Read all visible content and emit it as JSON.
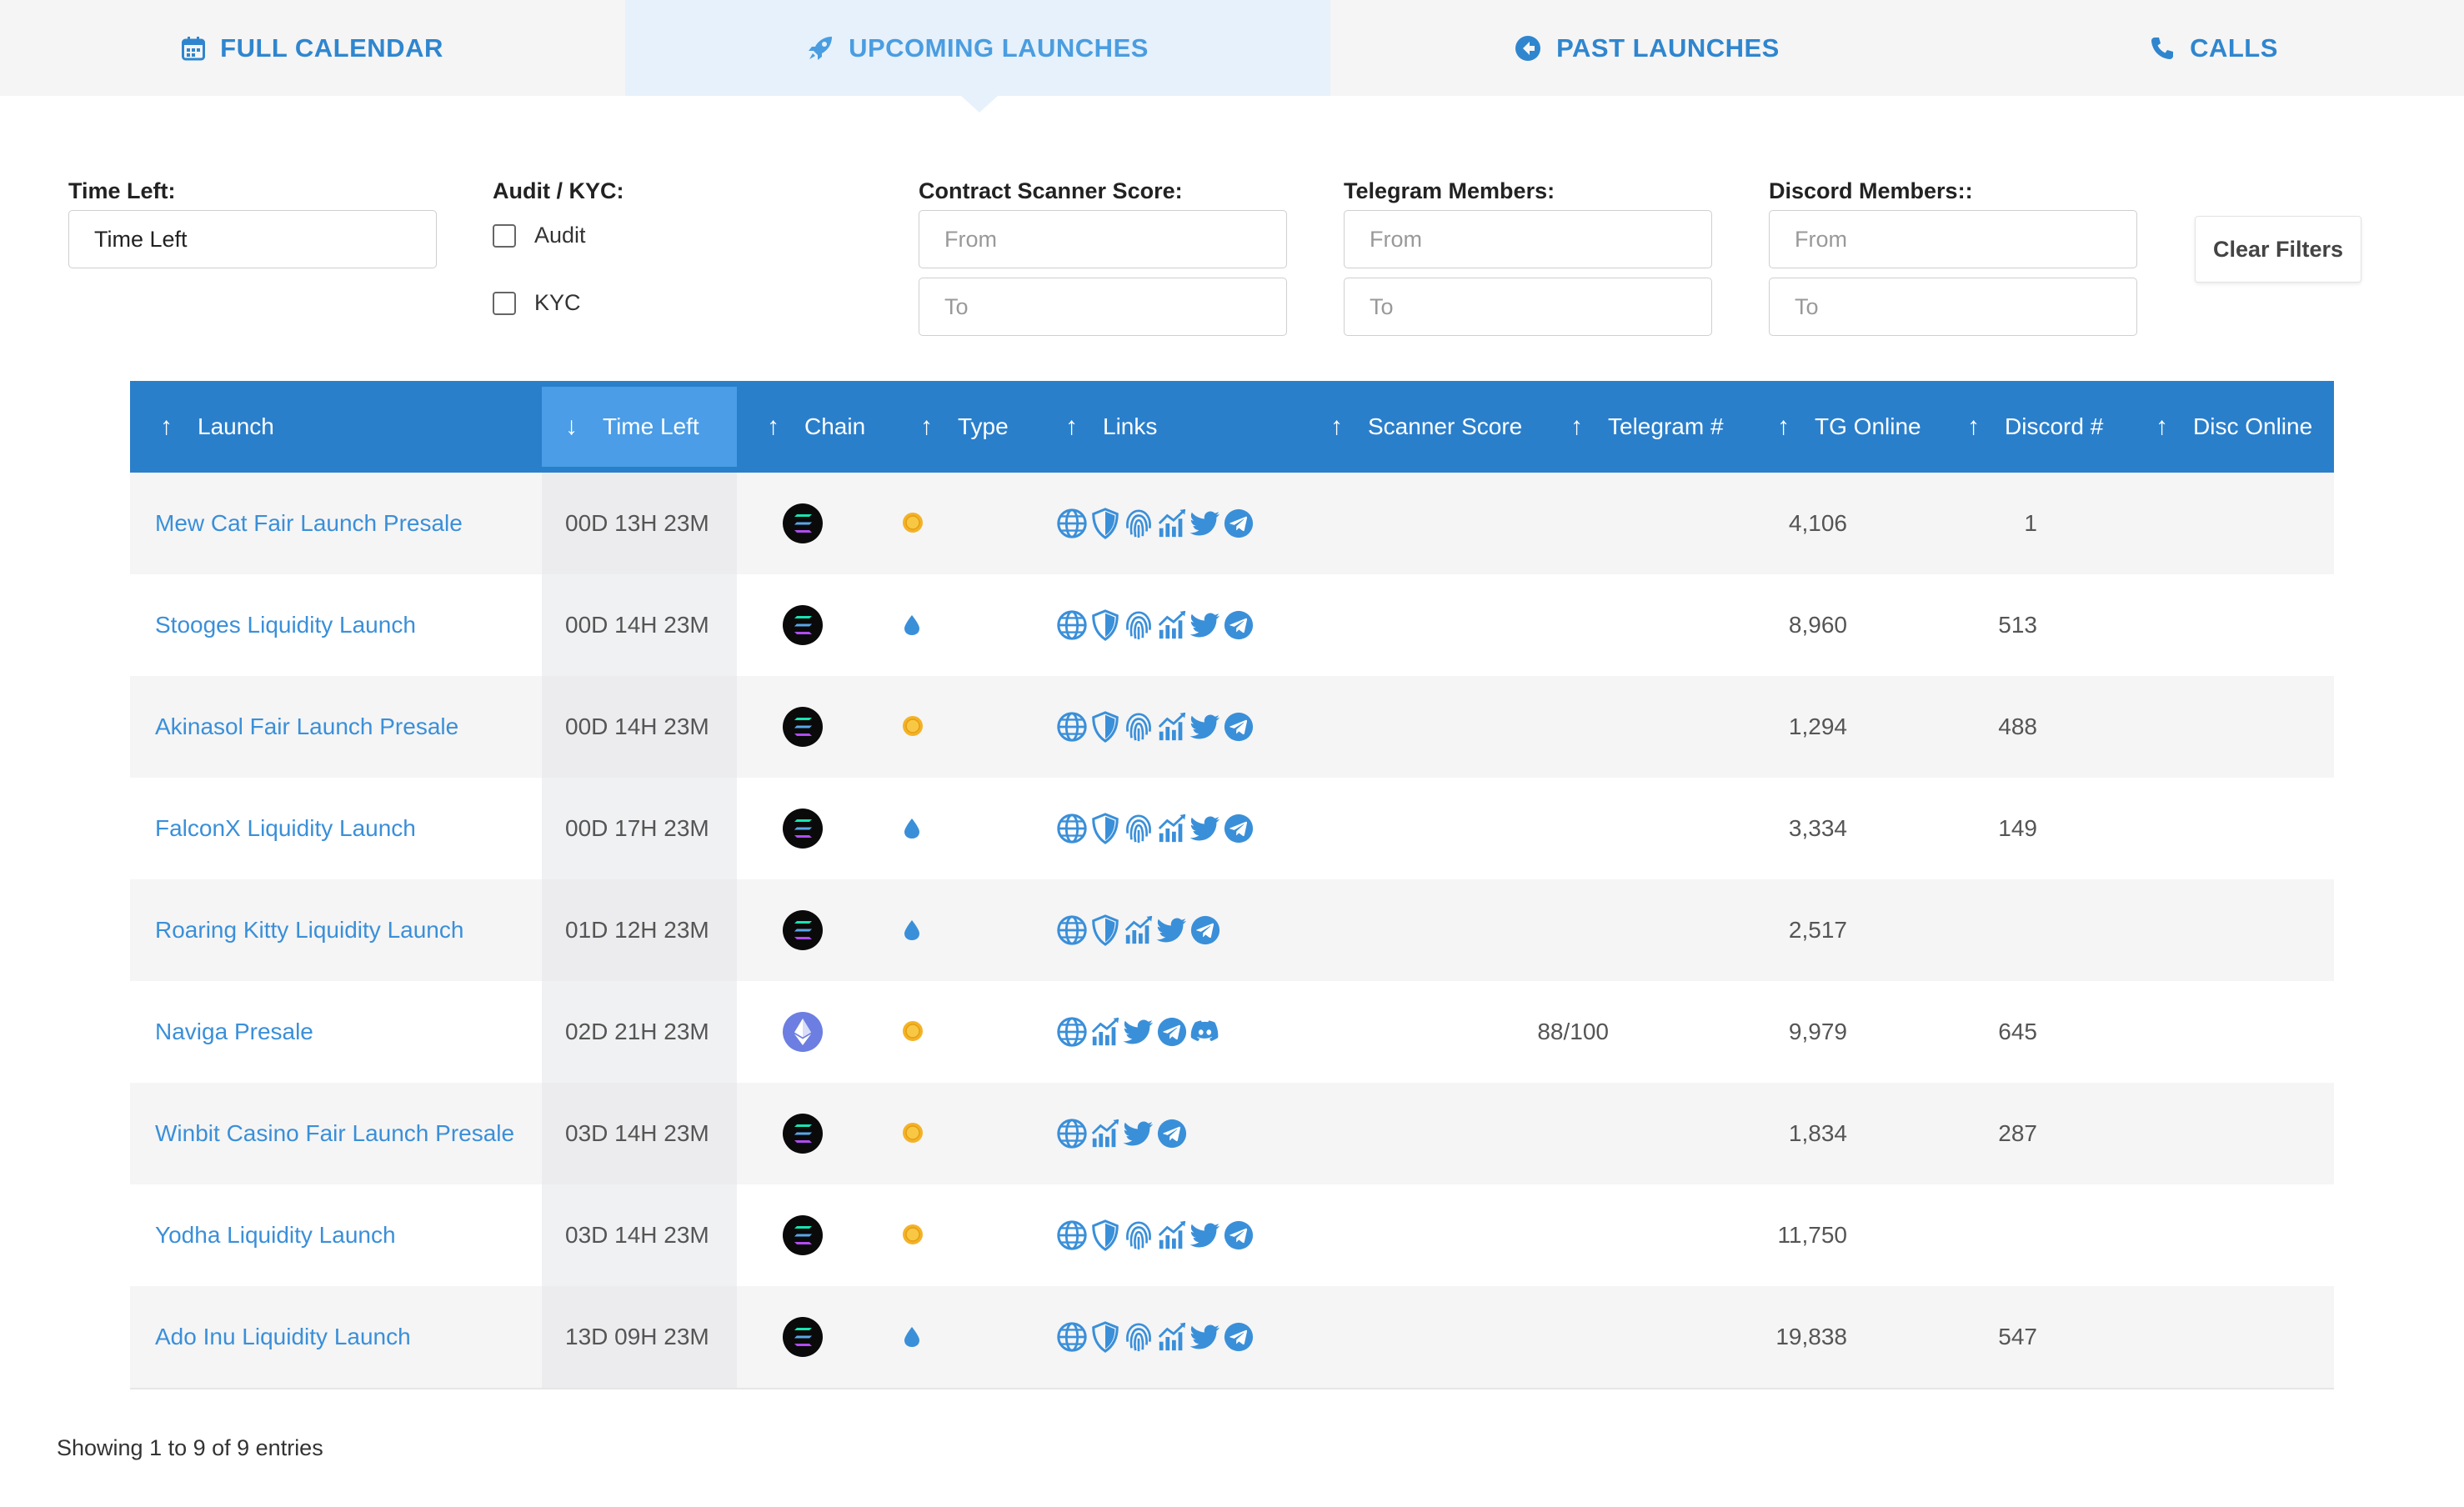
{
  "tabs": [
    {
      "label": "FULL CALENDAR",
      "icon": "calendar-icon"
    },
    {
      "label": "UPCOMING LAUNCHES",
      "icon": "rocket-icon",
      "active": true
    },
    {
      "label": "PAST LAUNCHES",
      "icon": "arrow-circle-left-icon"
    },
    {
      "label": "CALLS",
      "icon": "phone-icon"
    }
  ],
  "filters": {
    "time_left": {
      "label": "Time Left:",
      "value": "Time Left"
    },
    "audit_kyc": {
      "label": "Audit / KYC:",
      "audit": "Audit",
      "kyc": "KYC"
    },
    "scanner": {
      "label": "Contract Scanner Score:",
      "from_placeholder": "From",
      "to_placeholder": "To"
    },
    "telegram": {
      "label": "Telegram Members:",
      "from_placeholder": "From",
      "to_placeholder": "To"
    },
    "discord": {
      "label": "Discord Members::",
      "from_placeholder": "From",
      "to_placeholder": "To"
    },
    "clear_label": "Clear Filters"
  },
  "table": {
    "headers": [
      {
        "label": "Launch",
        "arrow": "↑"
      },
      {
        "label": "Time Left",
        "arrow": "↓",
        "sorted": true
      },
      {
        "label": "Chain",
        "arrow": "↑"
      },
      {
        "label": "Type",
        "arrow": "↑"
      },
      {
        "label": "Links",
        "arrow": "↑"
      },
      {
        "label": "Scanner Score",
        "arrow": "↑"
      },
      {
        "label": "Telegram #",
        "arrow": "↑"
      },
      {
        "label": "TG Online",
        "arrow": "↑"
      },
      {
        "label": "Discord #",
        "arrow": "↑"
      },
      {
        "label": "Disc Online",
        "arrow": "↑"
      }
    ],
    "rows": [
      {
        "name": "Mew Cat Fair Launch Presale",
        "time": "00D 13H 23M",
        "chain": "solana",
        "type": "coin",
        "links": [
          "globe",
          "shield",
          "fingerprint",
          "chart",
          "twitter",
          "telegram"
        ],
        "scanner": "",
        "telegram": "4,106",
        "tg_online": "1",
        "discord": "",
        "disc_online": ""
      },
      {
        "name": "Stooges Liquidity Launch",
        "time": "00D 14H 23M",
        "chain": "solana",
        "type": "drop",
        "links": [
          "globe",
          "shield",
          "fingerprint",
          "chart",
          "twitter",
          "telegram"
        ],
        "scanner": "",
        "telegram": "8,960",
        "tg_online": "513",
        "discord": "",
        "disc_online": ""
      },
      {
        "name": "Akinasol Fair Launch Presale",
        "time": "00D 14H 23M",
        "chain": "solana",
        "type": "coin",
        "links": [
          "globe",
          "shield",
          "fingerprint",
          "chart",
          "twitter",
          "telegram"
        ],
        "scanner": "",
        "telegram": "1,294",
        "tg_online": "488",
        "discord": "",
        "disc_online": ""
      },
      {
        "name": "FalconX Liquidity Launch",
        "time": "00D 17H 23M",
        "chain": "solana",
        "type": "drop",
        "links": [
          "globe",
          "shield",
          "fingerprint",
          "chart",
          "twitter",
          "telegram"
        ],
        "scanner": "",
        "telegram": "3,334",
        "tg_online": "149",
        "discord": "",
        "disc_online": ""
      },
      {
        "name": "Roaring Kitty Liquidity Launch",
        "time": "01D 12H 23M",
        "chain": "solana",
        "type": "drop",
        "links": [
          "globe",
          "shield",
          "chart",
          "twitter",
          "telegram"
        ],
        "scanner": "",
        "telegram": "2,517",
        "tg_online": "",
        "discord": "",
        "disc_online": ""
      },
      {
        "name": "Naviga Presale",
        "time": "02D 21H 23M",
        "chain": "ethereum",
        "type": "coin",
        "links": [
          "globe",
          "chart",
          "twitter",
          "telegram",
          "discord"
        ],
        "scanner": "88/100",
        "telegram": "9,979",
        "tg_online": "645",
        "discord": "",
        "disc_online": ""
      },
      {
        "name": "Winbit Casino Fair Launch Presale",
        "time": "03D 14H 23M",
        "chain": "solana",
        "type": "coin",
        "links": [
          "globe",
          "chart",
          "twitter",
          "telegram"
        ],
        "scanner": "",
        "telegram": "1,834",
        "tg_online": "287",
        "discord": "",
        "disc_online": ""
      },
      {
        "name": "Yodha Liquidity Launch",
        "time": "03D 14H 23M",
        "chain": "solana",
        "type": "coin",
        "links": [
          "globe",
          "shield",
          "fingerprint",
          "chart",
          "twitter",
          "telegram"
        ],
        "scanner": "",
        "telegram": "11,750",
        "tg_online": "",
        "discord": "",
        "disc_online": ""
      },
      {
        "name": "Ado Inu Liquidity Launch",
        "time": "13D 09H 23M",
        "chain": "solana",
        "type": "drop",
        "links": [
          "globe",
          "shield",
          "fingerprint",
          "chart",
          "twitter",
          "telegram"
        ],
        "scanner": "",
        "telegram": "19,838",
        "tg_online": "547",
        "discord": "",
        "disc_online": ""
      }
    ]
  },
  "footer": {
    "text": "Showing 1 to 9 of 9 entries"
  },
  "colors": {
    "accent": "#2a7fcb",
    "link": "#3a8fd9",
    "coin": "#f4b227",
    "drop": "#3a8fd9"
  }
}
